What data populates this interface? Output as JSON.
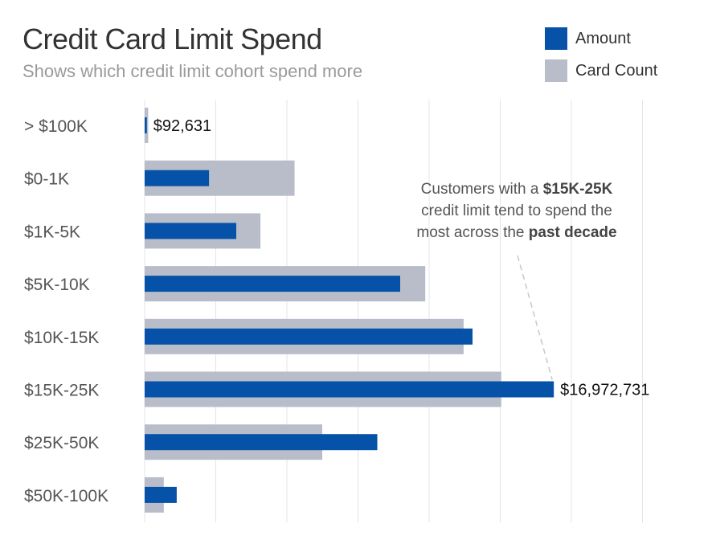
{
  "chart_data": {
    "type": "bar",
    "orientation": "horizontal",
    "title": "Credit Card Limit Spend",
    "subtitle": "Shows which credit limit cohort spend more",
    "categories": [
      "> $100K",
      "$0-1K",
      "$1K-5K",
      "$5K-10K",
      "$10K-15K",
      "$15K-25K",
      "$25K-50K",
      "$50K-100K"
    ],
    "series": [
      {
        "name": "Amount",
        "color": "#0652a8",
        "values": [
          92631,
          2670000,
          3800000,
          10600000,
          13600000,
          16972731,
          9650000,
          1330000
        ]
      },
      {
        "name": "Card Count",
        "color": "#b9bdc9",
        "values": [
          0.005,
          0.211,
          0.163,
          0.395,
          0.449,
          0.502,
          0.25,
          0.027
        ]
      }
    ],
    "data_labels": [
      "$92,631",
      "",
      "",
      "",
      "",
      "$16,972,731",
      "",
      ""
    ],
    "grid": true,
    "legend_position": "top-right",
    "annotation": {
      "text_1": "Customers with a ",
      "bold_1": "$15K-25K",
      "text_2": "credit limit tend to spend the",
      "text_3": "most across the ",
      "bold_2": "past decade"
    }
  }
}
